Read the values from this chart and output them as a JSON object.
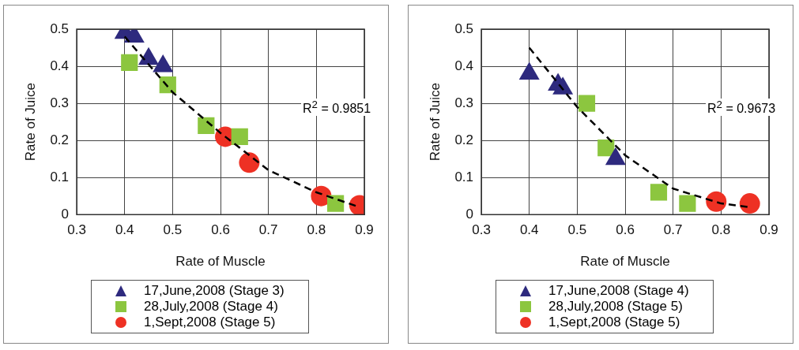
{
  "chart_data": [
    {
      "type": "scatter",
      "xlabel": "Rate of Muscle",
      "ylabel": "Rate of Juice",
      "xlim": [
        0.3,
        0.9
      ],
      "xticks": [
        0.3,
        0.4,
        0.5,
        0.6,
        0.7,
        0.8,
        0.9
      ],
      "ylim": [
        0,
        0.5
      ],
      "yticks": [
        0,
        0.1,
        0.2,
        0.3,
        0.4,
        0.5
      ],
      "grid": true,
      "legend": "bottom",
      "annotations": [
        "R$^{2}$ = 0.9851"
      ],
      "series": [
        {
          "name": "17,June,2008 (Stage 3)",
          "color": "#2e2a7e",
          "marker": "triangle",
          "x": [
            0.4,
            0.42,
            0.45,
            0.48
          ],
          "values": [
            0.49,
            0.48,
            0.42,
            0.4
          ]
        },
        {
          "name": "28,July,2008 (Stage 4)",
          "color": "#8cc63f",
          "marker": "square",
          "x": [
            0.41,
            0.49,
            0.57,
            0.64,
            0.84
          ],
          "values": [
            0.41,
            0.35,
            0.24,
            0.21,
            0.03
          ]
        },
        {
          "name": "1,Sept,2008 (Stage 5)",
          "color": "#ee3124",
          "marker": "circle",
          "x": [
            0.61,
            0.66,
            0.81,
            0.87,
            0.89
          ],
          "values": [
            0.21,
            0.14,
            0.05,
            null,
            0.025
          ]
        },
        {
          "type": "line",
          "color": "#000000",
          "marker": "none",
          "line_style": "dashed",
          "x": [
            0.4,
            0.5,
            0.6,
            0.7,
            0.8,
            0.89
          ],
          "values": [
            0.48,
            0.33,
            0.22,
            0.12,
            0.06,
            0.02
          ]
        }
      ]
    },
    {
      "type": "scatter",
      "xlabel": "Rate of Muscle",
      "ylabel": "Rate of Juice",
      "xlim": [
        0.3,
        0.9
      ],
      "xticks": [
        0.3,
        0.4,
        0.5,
        0.6,
        0.7,
        0.8,
        0.9
      ],
      "ylim": [
        0,
        0.5
      ],
      "yticks": [
        0,
        0.1,
        0.2,
        0.3,
        0.4,
        0.5
      ],
      "grid": true,
      "legend": "bottom",
      "annotations": [
        "R$^{2}$ = 0.9673"
      ],
      "series": [
        {
          "name": "17,June,2008 (Stage 4)",
          "color": "#2e2a7e",
          "marker": "triangle",
          "x": [
            0.4,
            0.46,
            0.47,
            0.58
          ],
          "values": [
            0.38,
            0.35,
            0.34,
            0.15
          ]
        },
        {
          "name": "28,July,2008 (Stage 5)",
          "color": "#8cc63f",
          "marker": "square",
          "x": [
            0.52,
            0.56,
            0.67,
            0.73
          ],
          "values": [
            0.3,
            0.18,
            0.06,
            0.03
          ]
        },
        {
          "name": "1,Sept,2008 (Stage 5)",
          "color": "#ee3124",
          "marker": "circle",
          "x": [
            0.79,
            0.86
          ],
          "values": [
            0.035,
            0.03
          ]
        },
        {
          "type": "line",
          "color": "#000000",
          "marker": "none",
          "line_style": "dashed",
          "x": [
            0.4,
            0.5,
            0.6,
            0.7,
            0.8,
            0.86
          ],
          "values": [
            0.45,
            0.29,
            0.16,
            0.07,
            0.03,
            0.02
          ]
        }
      ]
    }
  ]
}
